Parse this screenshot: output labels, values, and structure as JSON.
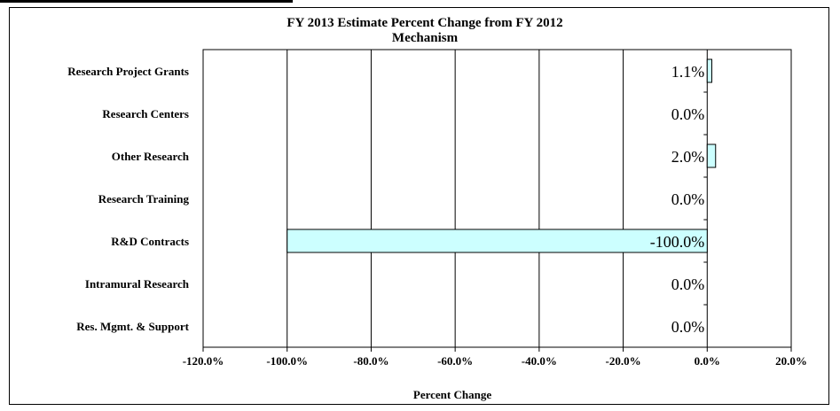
{
  "chart_data": {
    "type": "bar",
    "orientation": "horizontal",
    "title": "FY 2013 Estimate Percent Change from FY 2012",
    "subtitle": "Mechanism",
    "xlabel": "Percent Change",
    "categories": [
      "Research Project Grants",
      "Research Centers",
      "Other Research",
      "Research Training",
      "R&D Contracts",
      "Intramural Research",
      "Res. Mgmt. & Support"
    ],
    "values": [
      1.1,
      0.0,
      2.0,
      0.0,
      -100.0,
      0.0,
      0.0
    ],
    "data_labels": [
      "1.1%",
      "0.0%",
      "2.0%",
      "0.0%",
      "-100.0%",
      "0.0%",
      "0.0%"
    ],
    "xlim": [
      -120,
      20
    ],
    "xticks": [
      -120,
      -100,
      -80,
      -60,
      -40,
      -20,
      0,
      20
    ],
    "xtick_labels": [
      "-120.0%",
      "-100.0%",
      "-80.0%",
      "-60.0%",
      "-40.0%",
      "-20.0%",
      "0.0%",
      "20.0%"
    ],
    "grid": "vertical",
    "legend": "none"
  },
  "colors": {
    "bar_fill": "#ccffff",
    "bar_stroke": "#000000",
    "grid": "#000000"
  }
}
